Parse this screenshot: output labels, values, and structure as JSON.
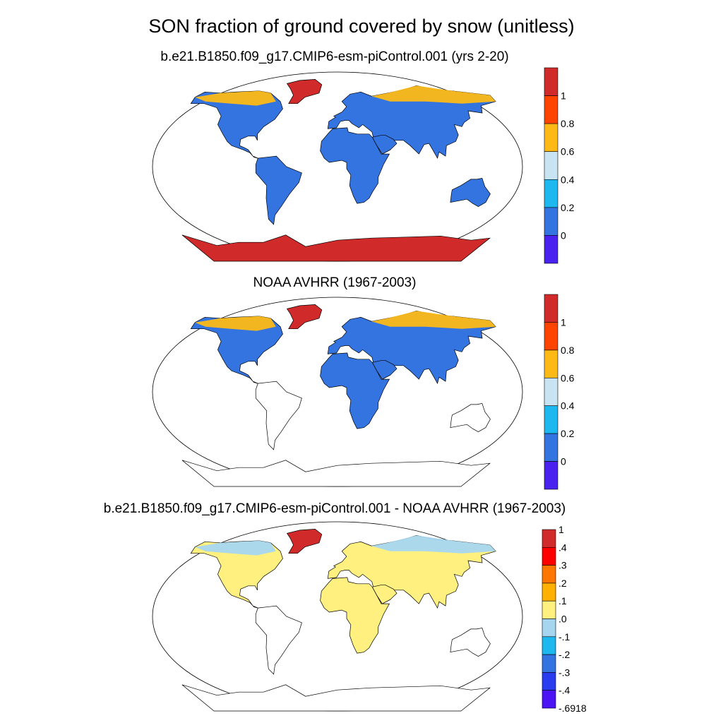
{
  "figure": {
    "title": "SON fraction of ground covered by snow (unitless)"
  },
  "panels": [
    {
      "id": "model",
      "subtitle": "b.e21.B1850.f09_g17.CMIP6-esm-piControl.001 (yrs 2-20)",
      "colorbar": {
        "labels": [
          "1",
          "0.8",
          "0.6",
          "0.4",
          "0.2",
          "0"
        ],
        "colors": [
          "#d02a2a",
          "#ff4400",
          "#fdb915",
          "#c8e4f3",
          "#1db8f0",
          "#3474e0",
          "#4a22f0"
        ]
      },
      "coverage": "global"
    },
    {
      "id": "obs",
      "subtitle": "NOAA AVHRR (1967-2003)",
      "colorbar": {
        "labels": [
          "1",
          "0.8",
          "0.6",
          "0.4",
          "0.2",
          "0"
        ],
        "colors": [
          "#d02a2a",
          "#ff4400",
          "#fdb915",
          "#c8e4f3",
          "#1db8f0",
          "#3474e0",
          "#4a22f0"
        ]
      },
      "coverage": "northern-hemisphere"
    },
    {
      "id": "diff",
      "subtitle": "b.e21.B1850.f09_g17.CMIP6-esm-piControl.001 - NOAA AVHRR (1967-2003)",
      "colorbar": {
        "labels": [
          "1",
          ".4",
          ".3",
          ".2",
          ".1",
          ".0",
          "-.1",
          "-.2",
          "-.3",
          "-.4",
          "-.6918"
        ],
        "colors": [
          "#d02a2a",
          "#ff0000",
          "#ff7700",
          "#ffb000",
          "#fff080",
          "#a6d6ef",
          "#1db8f0",
          "#3474e0",
          "#2a3cf0",
          "#4a14f5"
        ]
      },
      "coverage": "northern-hemisphere"
    }
  ]
}
